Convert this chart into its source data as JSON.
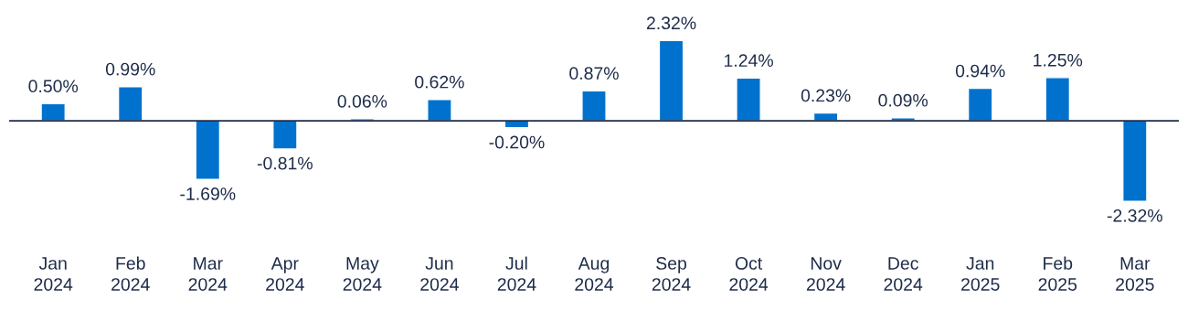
{
  "chart_data": {
    "type": "bar",
    "categories": [
      "Jan 2024",
      "Feb 2024",
      "Mar 2024",
      "Apr 2024",
      "May 2024",
      "Jun 2024",
      "Jul 2024",
      "Aug 2024",
      "Sep 2024",
      "Oct 2024",
      "Nov 2024",
      "Dec 2024",
      "Jan 2025",
      "Feb 2025",
      "Mar 2025"
    ],
    "values": [
      0.5,
      0.99,
      -1.69,
      -0.81,
      0.06,
      0.62,
      -0.2,
      0.87,
      2.32,
      1.24,
      0.23,
      0.09,
      0.94,
      1.25,
      -2.32
    ],
    "value_labels": [
      "0.50%",
      "0.99%",
      "-1.69%",
      "-0.81%",
      "0.06%",
      "0.62%",
      "-0.20%",
      "0.87%",
      "2.32%",
      "1.24%",
      "0.23%",
      "0.09%",
      "0.94%",
      "1.25%",
      "-2.32%"
    ],
    "color": "#0072ce",
    "grid": false,
    "legend": false
  }
}
